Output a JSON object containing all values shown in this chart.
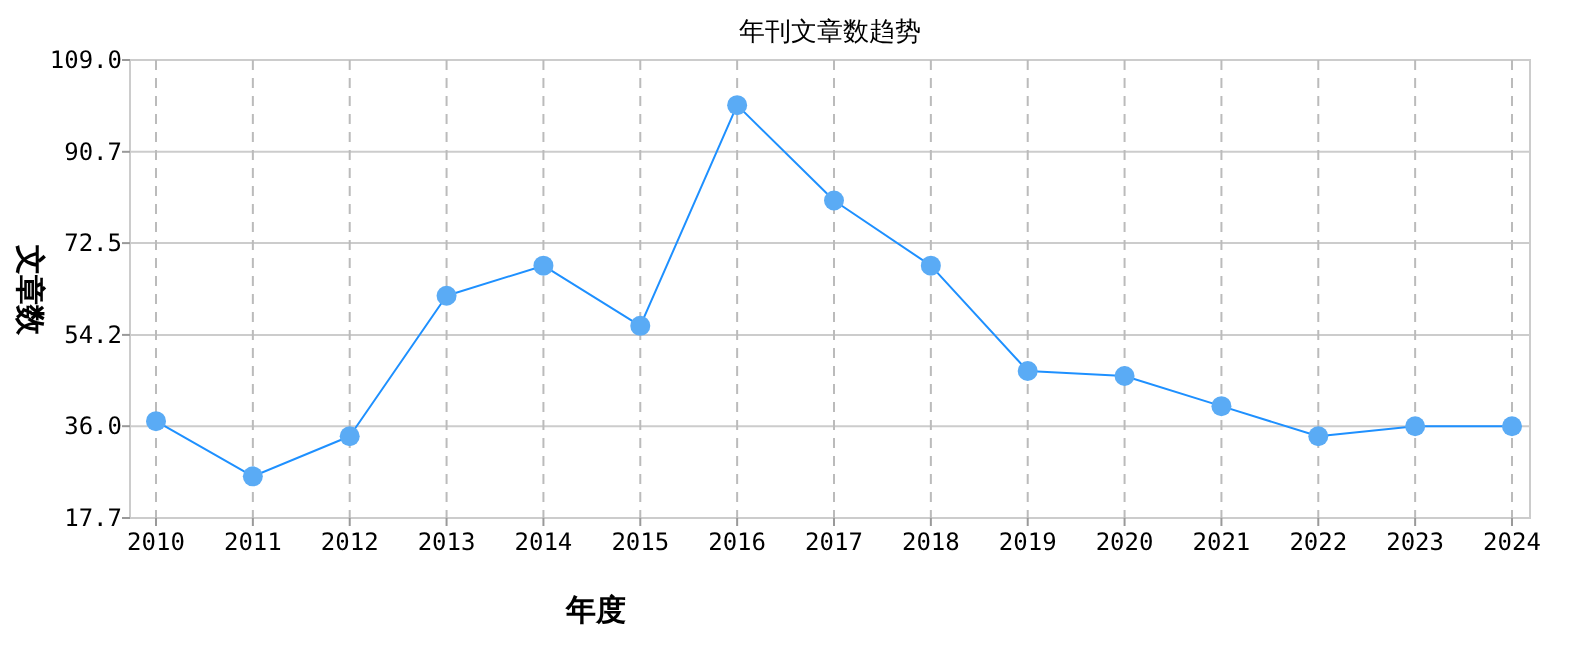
{
  "chart_data": {
    "type": "line",
    "title": "年刊文章数趋势",
    "xlabel": "年度",
    "ylabel": "文章数",
    "categories": [
      "2010",
      "2011",
      "2012",
      "2013",
      "2014",
      "2015",
      "2016",
      "2017",
      "2018",
      "2019",
      "2020",
      "2021",
      "2022",
      "2023",
      "2024"
    ],
    "series": [
      {
        "color": "#1e90ff",
        "values": [
          37,
          26,
          34,
          62,
          68,
          56,
          100,
          81,
          68,
          47,
          46,
          40,
          34,
          36,
          36
        ]
      }
    ],
    "ylim": [
      17.7,
      109.0
    ],
    "yticks": [
      {
        "value": 17.7,
        "label": "17.7"
      },
      {
        "value": 36.0,
        "label": "36.0"
      },
      {
        "value": 54.2,
        "label": "54.2"
      },
      {
        "value": 72.5,
        "label": "72.5"
      },
      {
        "value": 90.7,
        "label": "90.7"
      },
      {
        "value": 109.0,
        "label": "109.0"
      }
    ],
    "grid": true,
    "marker": "circle",
    "line_style": "solid"
  }
}
